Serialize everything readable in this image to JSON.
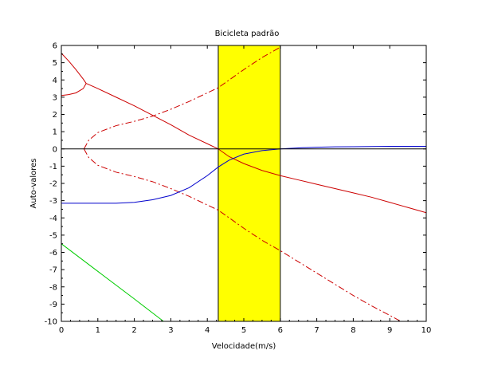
{
  "chart_data": {
    "type": "line",
    "title": "Bicicleta padrão",
    "xlabel": "Velocidade(m/s)",
    "ylabel": "Auto-valores",
    "xlim": [
      0,
      10
    ],
    "ylim": [
      -10,
      6
    ],
    "x_ticks": [
      "0",
      "1",
      "2",
      "3",
      "4",
      "5",
      "6",
      "7",
      "8",
      "9",
      "10"
    ],
    "y_ticks": [
      "6",
      "5",
      "4",
      "3",
      "2",
      "1",
      "0",
      "-1",
      "-2",
      "-3",
      "-4",
      "-5",
      "-6",
      "-7",
      "-8",
      "-9",
      "-10"
    ],
    "grid": false,
    "highlight_band": {
      "x_start": 4.3,
      "x_end": 6.0,
      "color": "#ffff00"
    },
    "zero_line": 0,
    "series": [
      {
        "color": "#cc0000",
        "style": "solid",
        "x": [
          0,
          0.2,
          0.4,
          0.6,
          0.68
        ],
        "values": [
          5.55,
          5.1,
          4.6,
          4.05,
          3.8
        ]
      },
      {
        "color": "#cc0000",
        "style": "solid",
        "x": [
          0,
          0.2,
          0.4,
          0.6,
          0.68
        ],
        "values": [
          3.1,
          3.15,
          3.25,
          3.5,
          3.8
        ]
      },
      {
        "color": "#cc0000",
        "style": "solid",
        "x": [
          0.68,
          1,
          1.5,
          2,
          2.5,
          3,
          3.5,
          4,
          4.3,
          4.6,
          5,
          5.5,
          6,
          6.5,
          7,
          7.5,
          8,
          8.5,
          9,
          9.5,
          10
        ],
        "values": [
          3.8,
          3.5,
          3.0,
          2.5,
          1.95,
          1.4,
          0.8,
          0.3,
          0.0,
          -0.45,
          -0.85,
          -1.25,
          -1.55,
          -1.8,
          -2.05,
          -2.3,
          -2.55,
          -2.8,
          -3.1,
          -3.4,
          -3.7
        ]
      },
      {
        "color": "#cc0000",
        "style": "dashdot",
        "x": [
          0.62,
          0.75,
          1,
          1.5,
          2,
          2.5,
          3,
          3.5,
          4,
          4.3,
          4.6,
          5,
          5.5,
          6
        ],
        "values": [
          0.0,
          0.5,
          0.95,
          1.35,
          1.6,
          1.9,
          2.3,
          2.75,
          3.25,
          3.55,
          4.0,
          4.6,
          5.3,
          5.9
        ]
      },
      {
        "color": "#cc0000",
        "style": "dashdot",
        "x": [
          0.62,
          0.75,
          1,
          1.5,
          2,
          2.5,
          3,
          3.5,
          4,
          4.3,
          4.6,
          5,
          5.5,
          6,
          6.5,
          7,
          7.5,
          8,
          8.5,
          9,
          9.3
        ],
        "values": [
          0.0,
          -0.5,
          -0.95,
          -1.35,
          -1.6,
          -1.9,
          -2.3,
          -2.75,
          -3.25,
          -3.55,
          -4.0,
          -4.6,
          -5.3,
          -5.9,
          -6.55,
          -7.2,
          -7.85,
          -8.5,
          -9.1,
          -9.65,
          -10.0
        ]
      },
      {
        "color": "#0000cc",
        "style": "solid",
        "x": [
          0,
          0.5,
          1,
          1.5,
          2,
          2.5,
          3,
          3.5,
          4,
          4.3,
          4.6,
          5,
          5.5,
          6,
          6.5,
          7,
          7.5,
          8,
          8.5,
          9,
          9.5,
          10
        ],
        "values": [
          -3.15,
          -3.15,
          -3.15,
          -3.15,
          -3.1,
          -2.95,
          -2.7,
          -2.25,
          -1.55,
          -1.05,
          -0.65,
          -0.3,
          -0.1,
          0.0,
          0.06,
          0.1,
          0.12,
          0.13,
          0.14,
          0.15,
          0.15,
          0.15
        ]
      },
      {
        "color": "#00cc00",
        "style": "solid",
        "x": [
          0,
          1,
          2,
          2.8
        ],
        "values": [
          -5.5,
          -7.1,
          -8.7,
          -10.0
        ]
      }
    ]
  }
}
